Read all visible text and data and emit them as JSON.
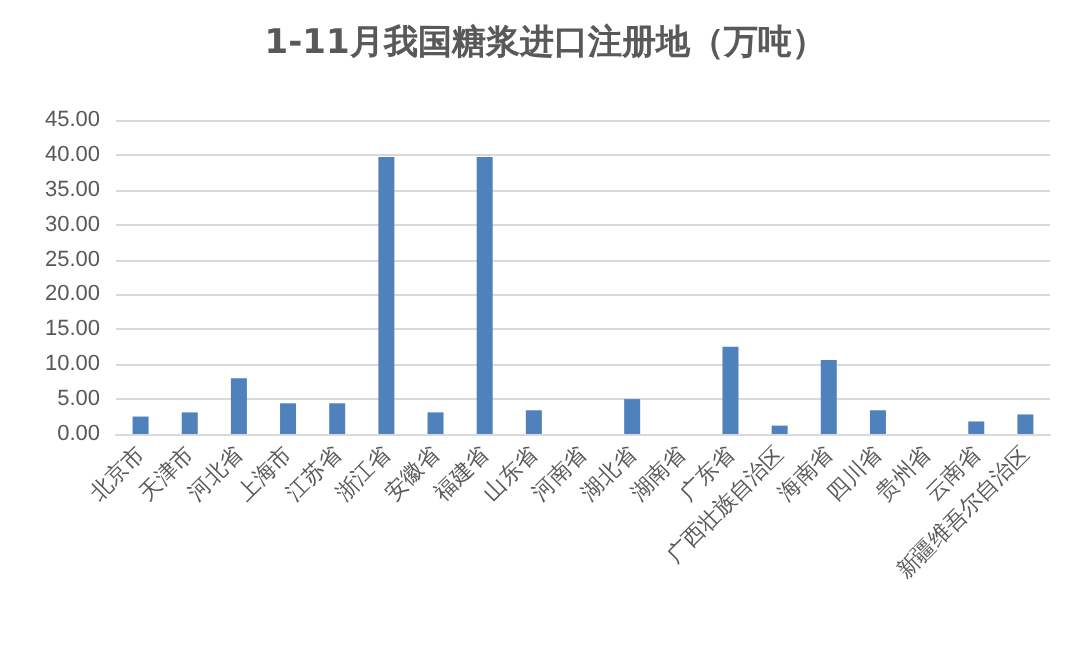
{
  "chart_data": {
    "type": "bar",
    "title": "1-11月我国糖浆进口注册地（万吨）",
    "categories": [
      "北京市",
      "天津市",
      "河北省",
      "上海市",
      "江苏省",
      "浙江省",
      "安徽省",
      "福建省",
      "山东省",
      "河南省",
      "湖北省",
      "湖南省",
      "广东省",
      "广西壮族自治区",
      "海南省",
      "四川省",
      "贵州省",
      "云南省",
      "新疆维吾尔自治区"
    ],
    "values": [
      2.5,
      3.1,
      8.0,
      4.4,
      4.4,
      39.7,
      3.1,
      39.7,
      3.4,
      0,
      5.0,
      0,
      12.5,
      1.2,
      10.6,
      3.4,
      0,
      1.8,
      2.8
    ],
    "color": "#4f81bd",
    "ylim": [
      0,
      45
    ],
    "yticks": [
      {
        "value": 0,
        "label": "0.00"
      },
      {
        "value": 5,
        "label": "5.00"
      },
      {
        "value": 10,
        "label": "10.00"
      },
      {
        "value": 15,
        "label": "15.00"
      },
      {
        "value": 20,
        "label": "20.00"
      },
      {
        "value": 25,
        "label": "25.00"
      },
      {
        "value": 30,
        "label": "30.00"
      },
      {
        "value": 35,
        "label": "35.00"
      },
      {
        "value": 40,
        "label": "40.00"
      },
      {
        "value": 45,
        "label": "45.00"
      }
    ],
    "grid": "y"
  }
}
